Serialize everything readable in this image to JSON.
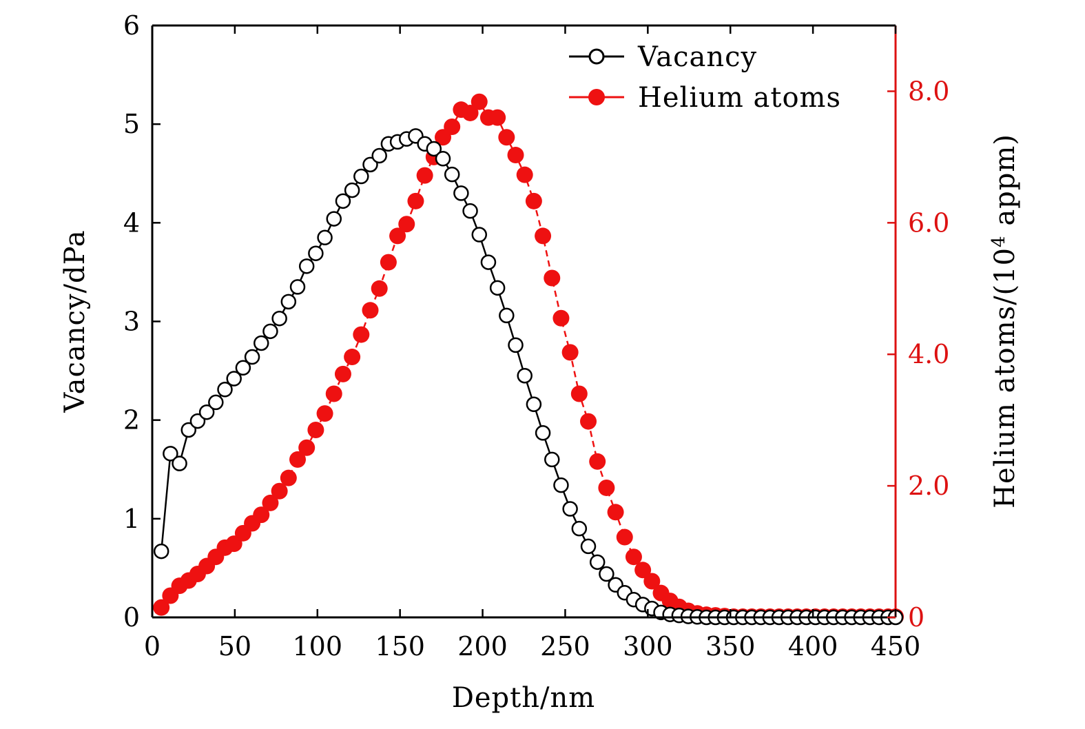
{
  "colors": {
    "vacancy": "#000000",
    "helium": "#ee1111",
    "right_axis": "#dd1111",
    "background": "#ffffff"
  },
  "chart_data": {
    "type": "scatter",
    "xlabel": "Depth/nm",
    "ylabel_left": "Vacancy/dPa",
    "ylabel_right_main": "Helium atoms/(10",
    "ylabel_right_sup": "4",
    "ylabel_right_end": " appm)",
    "xlim": [
      0,
      450
    ],
    "ylim_left": [
      0,
      6
    ],
    "ylim_right": [
      0,
      9
    ],
    "x_ticks": [
      "0",
      "50",
      "100",
      "150",
      "200",
      "250",
      "300",
      "350",
      "400",
      "450"
    ],
    "x_tick_values": [
      0,
      50,
      100,
      150,
      200,
      250,
      300,
      350,
      400,
      450
    ],
    "y_left_ticks": [
      "0",
      "1",
      "2",
      "3",
      "4",
      "5",
      "6"
    ],
    "y_left_tick_values": [
      0,
      1,
      2,
      3,
      4,
      5,
      6
    ],
    "y_right_ticks": [
      "0",
      "2.0",
      "4.0",
      "6.0",
      "8.0"
    ],
    "y_right_tick_values": [
      0,
      2,
      4,
      6,
      8
    ],
    "legend_position": "top-right",
    "series": [
      {
        "name": "Vacancy",
        "axis": "left",
        "marker": "open-circle",
        "line": "solid",
        "x": [
          5.5,
          11,
          16.5,
          22,
          27.5,
          33,
          38.5,
          44,
          49.5,
          55,
          60.5,
          66,
          71.5,
          77,
          82.5,
          88,
          93.5,
          99,
          104.5,
          110,
          115.5,
          121,
          126.5,
          132,
          137.5,
          143,
          148.5,
          154,
          159.5,
          165,
          170.5,
          176,
          181.5,
          187,
          192.5,
          198,
          203.5,
          209,
          214.5,
          220,
          225.5,
          231,
          236.5,
          242,
          247.5,
          253,
          258.5,
          264,
          269.5,
          275,
          280.5,
          286,
          291.5,
          297,
          302.5,
          308,
          313.5,
          319,
          324.5,
          330,
          335.5,
          341,
          346.5,
          352,
          357.5,
          363,
          368.5,
          374,
          379.5,
          385,
          390.5,
          396,
          401.5,
          407,
          412.5,
          418,
          423.5,
          429,
          434.5,
          440,
          445.5,
          450
        ],
        "values": [
          0.67,
          1.66,
          1.56,
          1.9,
          1.99,
          2.08,
          2.18,
          2.31,
          2.42,
          2.53,
          2.64,
          2.78,
          2.9,
          3.03,
          3.2,
          3.35,
          3.56,
          3.69,
          3.85,
          4.04,
          4.22,
          4.33,
          4.47,
          4.59,
          4.68,
          4.8,
          4.82,
          4.85,
          4.88,
          4.8,
          4.75,
          4.65,
          4.49,
          4.3,
          4.12,
          3.88,
          3.6,
          3.34,
          3.06,
          2.76,
          2.45,
          2.16,
          1.87,
          1.6,
          1.34,
          1.1,
          0.9,
          0.72,
          0.56,
          0.44,
          0.33,
          0.25,
          0.18,
          0.13,
          0.09,
          0.05,
          0.03,
          0.02,
          0.01,
          0.005,
          0,
          0,
          0,
          0,
          0,
          0,
          0,
          0,
          0,
          0,
          0,
          0,
          0,
          0,
          0,
          0,
          0,
          0,
          0,
          0,
          0,
          0
        ]
      },
      {
        "name": "Helium atoms",
        "axis": "right",
        "marker": "filled-circle",
        "line": "dash",
        "x": [
          5.5,
          11,
          16.5,
          22,
          27.5,
          33,
          38.5,
          44,
          49.5,
          55,
          60.5,
          66,
          71.5,
          77,
          82.5,
          88,
          93.5,
          99,
          104.5,
          110,
          115.5,
          121,
          126.5,
          132,
          137.5,
          143,
          148.5,
          154,
          159.5,
          165,
          170.5,
          176,
          181.5,
          187,
          192.5,
          198,
          203.5,
          209,
          214.5,
          220,
          225.5,
          231,
          236.5,
          242,
          247.5,
          253,
          258.5,
          264,
          269.5,
          275,
          280.5,
          286,
          291.5,
          297,
          302.5,
          308,
          313.5,
          319,
          324.5,
          330,
          335.5,
          341,
          346.5,
          352,
          357.5,
          363,
          368.5,
          374,
          379.5,
          385,
          390.5,
          396,
          401.5,
          407,
          412.5,
          418,
          423.5,
          429,
          434.5,
          440,
          445.5,
          450
        ],
        "values": [
          0.15,
          0.33,
          0.48,
          0.56,
          0.66,
          0.78,
          0.92,
          1.06,
          1.12,
          1.28,
          1.43,
          1.56,
          1.74,
          1.92,
          2.12,
          2.4,
          2.58,
          2.85,
          3.1,
          3.4,
          3.7,
          3.96,
          4.3,
          4.67,
          5.0,
          5.4,
          5.8,
          5.98,
          6.33,
          6.72,
          7.0,
          7.3,
          7.46,
          7.72,
          7.67,
          7.84,
          7.6,
          7.6,
          7.3,
          7.03,
          6.73,
          6.33,
          5.8,
          5.16,
          4.55,
          4.03,
          3.4,
          2.98,
          2.37,
          1.97,
          1.6,
          1.22,
          0.92,
          0.72,
          0.55,
          0.37,
          0.25,
          0.16,
          0.1,
          0.06,
          0.04,
          0.03,
          0.02,
          0.01,
          0.01,
          0.01,
          0.01,
          0.01,
          0.01,
          0.01,
          0.01,
          0.01,
          0.01,
          0.01,
          0.01,
          0.01,
          0.01,
          0.01,
          0.01,
          0.01,
          0.01,
          0.01
        ]
      }
    ]
  }
}
